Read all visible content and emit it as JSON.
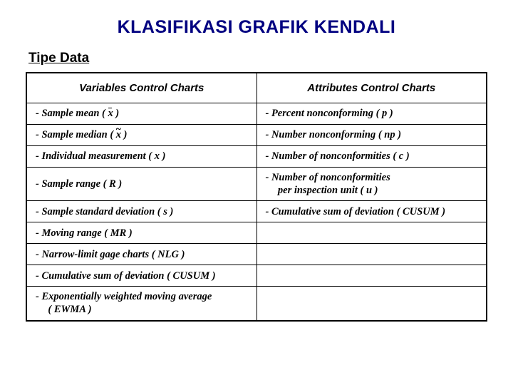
{
  "title": "KLASIFIKASI GRAFIK KENDALI",
  "subtitle": "Tipe Data",
  "table": {
    "type": "table",
    "border_color": "#000000",
    "header_bg": "#ffffff",
    "columns": [
      {
        "label": "Variables Control Charts",
        "width_pct": 50,
        "align": "center"
      },
      {
        "label": "Attributes Control Charts",
        "width_pct": 50,
        "align": "center"
      }
    ],
    "rows": [
      {
        "left": {
          "prefix": "- Sample mean ( ",
          "symbol": "xbar",
          "suffix": " )"
        },
        "right": {
          "text": "- Percent nonconforming ( p )"
        }
      },
      {
        "left": {
          "prefix": "- Sample median ( ",
          "symbol": "xtilde",
          "suffix": " )"
        },
        "right": {
          "text": "- Number nonconforming ( np )"
        }
      },
      {
        "left": {
          "text": "- Individual measurement ( x )"
        },
        "right": {
          "text": "- Number of nonconformities ( c )"
        }
      },
      {
        "left": {
          "text": "- Sample range ( R )"
        },
        "right": {
          "text_line1": "- Number of nonconformities",
          "text_line2": "per inspection unit ( u )"
        }
      },
      {
        "left": {
          "text": "- Sample standard deviation ( s )"
        },
        "right": {
          "text": "- Cumulative sum of deviation ( CUSUM )"
        }
      },
      {
        "left": {
          "text": "- Moving range ( MR )"
        },
        "right": {
          "text": ""
        }
      },
      {
        "left": {
          "text": "- Narrow-limit gage charts ( NLG )"
        },
        "right": {
          "text": ""
        }
      },
      {
        "left": {
          "text": "- Cumulative sum of deviation ( CUSUM )"
        },
        "right": {
          "text": ""
        }
      },
      {
        "left": {
          "text_line1": "- Exponentially weighted moving average",
          "text_line2": "( EWMA )"
        },
        "right": {
          "text": ""
        }
      }
    ],
    "fonts": {
      "header": {
        "family": "Arial",
        "size_pt": 15,
        "weight": "bold",
        "style": "italic"
      },
      "cell": {
        "family": "Times New Roman",
        "size_pt": 14.5,
        "weight": "bold",
        "style": "italic"
      }
    }
  },
  "colors": {
    "title": "#000080",
    "text": "#000000",
    "background": "#ffffff",
    "border": "#000000"
  }
}
